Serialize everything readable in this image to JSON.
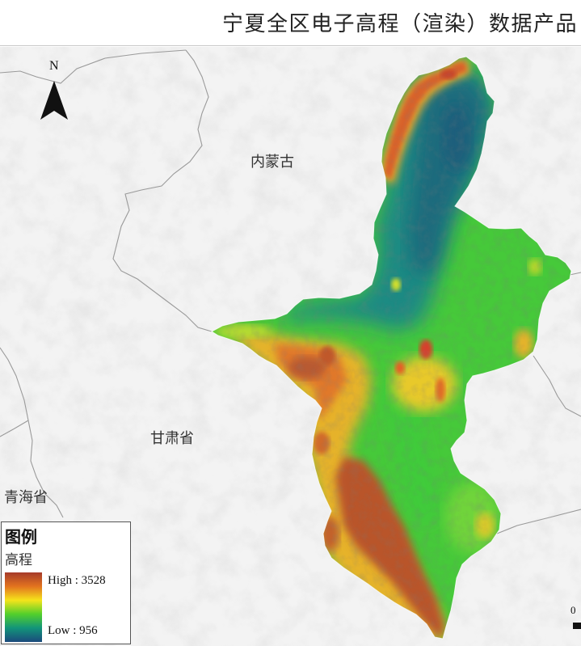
{
  "header": {
    "title": "宁夏全区电子高程（渲染）数据产品"
  },
  "map": {
    "north_arrow_label": "N",
    "region_labels": {
      "inner_mongolia": "内蒙古",
      "gansu": "甘肃省",
      "qinghai": "青海省"
    },
    "scale_bar_start": "0"
  },
  "legend": {
    "title": "图例",
    "layer_name": "高程",
    "high_text": "High : 3528",
    "low_text": "Low : 956",
    "color_ramp": [
      "#a63b2a",
      "#e2731f",
      "#f5e41b",
      "#52cf2b",
      "#12947a",
      "#1b4a7c"
    ]
  }
}
